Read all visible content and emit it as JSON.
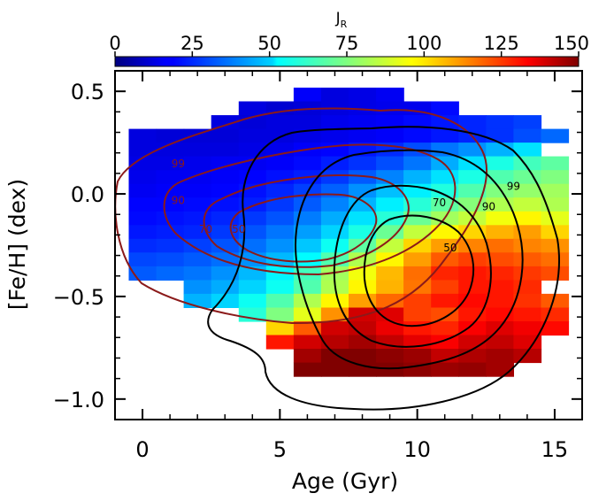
{
  "chart_data": {
    "type": "heatmap",
    "xlabel": "Age (Gyr)",
    "ylabel": "[Fe/H] (dex)",
    "xlim": [
      -1,
      16
    ],
    "ylim": [
      -1.1,
      0.6
    ],
    "x_ticks": [
      0,
      5,
      10,
      15
    ],
    "x_tick_labels": [
      "0",
      "5",
      "10",
      "15"
    ],
    "y_ticks": [
      0.5,
      0.0,
      -0.5,
      -1.0
    ],
    "y_tick_labels": [
      "0.5",
      "0.0",
      "−0.5",
      "−1.0"
    ],
    "colorbar": {
      "label": "J",
      "label_sub": "R",
      "range": [
        0,
        150
      ],
      "ticks": [
        0,
        25,
        50,
        75,
        100,
        125,
        150
      ],
      "tick_labels": [
        "0",
        "25",
        "50",
        "75",
        "100",
        "125",
        "150"
      ],
      "colormap": "jet"
    },
    "grid_x_start": -0.5,
    "grid_y_top": 0.25,
    "cell_width_gyr": 1.0,
    "cell_height_dex": 0.067,
    "rows": [
      {
        "row": -4,
        "start": 6,
        "values": [
          18,
          14,
          15,
          17
        ]
      },
      {
        "row": -3,
        "start": 4,
        "values": [
          14,
          12,
          13,
          14,
          15,
          16,
          16,
          20
        ]
      },
      {
        "row": -2,
        "start": 3,
        "values": [
          14,
          13,
          14,
          14,
          16,
          17,
          18,
          20,
          22,
          24,
          26,
          28
        ]
      },
      {
        "row": -1,
        "start": 0,
        "values": [
          14,
          13,
          13,
          13,
          14,
          14,
          15,
          16,
          17,
          18,
          20,
          22,
          24,
          26,
          30,
          34
        ]
      },
      {
        "row": 0,
        "start": 0,
        "values": [
          14,
          14,
          14,
          14,
          15,
          16,
          18,
          19,
          22,
          25,
          30,
          36,
          40,
          45,
          52
        ]
      },
      {
        "row": 1,
        "start": 0,
        "values": [
          15,
          15,
          16,
          17,
          17,
          18,
          20,
          23,
          26,
          30,
          36,
          44,
          52,
          60,
          66,
          70
        ]
      },
      {
        "row": 2,
        "start": 0,
        "values": [
          16,
          17,
          17,
          18,
          19,
          21,
          23,
          27,
          32,
          38,
          45,
          52,
          60,
          68,
          72,
          75
        ]
      },
      {
        "row": 3,
        "start": 0,
        "values": [
          17,
          18,
          18,
          19,
          21,
          24,
          28,
          33,
          40,
          47,
          54,
          61,
          68,
          75,
          78,
          80
        ]
      },
      {
        "row": 4,
        "start": 0,
        "values": [
          19,
          19,
          20,
          21,
          23,
          27,
          32,
          38,
          45,
          54,
          62,
          70,
          76,
          82,
          85,
          82
        ]
      },
      {
        "row": 5,
        "start": 0,
        "values": [
          20,
          21,
          22,
          24,
          27,
          31,
          37,
          44,
          52,
          62,
          72,
          80,
          85,
          92,
          95,
          90
        ]
      },
      {
        "row": 6,
        "start": 0,
        "values": [
          22,
          23,
          24,
          27,
          31,
          36,
          42,
          50,
          60,
          72,
          85,
          95,
          100,
          105,
          108,
          100
        ]
      },
      {
        "row": 7,
        "start": 0,
        "values": [
          25,
          26,
          28,
          31,
          35,
          40,
          48,
          58,
          70,
          85,
          100,
          108,
          112,
          115,
          112,
          110
        ]
      },
      {
        "row": 8,
        "start": 0,
        "values": [
          29,
          30,
          32,
          35,
          40,
          46,
          56,
          68,
          82,
          95,
          108,
          118,
          122,
          120,
          118,
          115
        ]
      },
      {
        "row": 9,
        "start": 0,
        "values": [
          32,
          34,
          36,
          40,
          46,
          55,
          66,
          80,
          92,
          104,
          115,
          126,
          128,
          126,
          123,
          120
        ]
      },
      {
        "row": 10,
        "start": 2,
        "values": [
          40,
          44,
          50,
          58,
          68,
          82,
          95,
          105,
          114,
          122,
          128,
          128,
          125
        ]
      },
      {
        "row": 11,
        "start": 2,
        "values": [
          45,
          50,
          58,
          68,
          82,
          95,
          108,
          116,
          122,
          128,
          130,
          128,
          124,
          118
        ]
      },
      {
        "row": 12,
        "start": 4,
        "values": [
          62,
          75,
          90,
          110,
          138,
          136,
          122,
          120,
          128,
          130,
          128,
          125
        ]
      },
      {
        "row": 13,
        "start": 5,
        "values": [
          100,
          118,
          138,
          140,
          134,
          128,
          126,
          132,
          136,
          133,
          130
        ]
      },
      {
        "row": 14,
        "start": 5,
        "values": [
          128,
          138,
          142,
          145,
          140,
          135,
          132,
          138,
          140,
          136
        ]
      },
      {
        "row": 15,
        "start": 6,
        "values": [
          145,
          150,
          150,
          148,
          146,
          140,
          143,
          145,
          142
        ]
      },
      {
        "row": 16,
        "start": 6,
        "values": [
          150,
          150,
          150,
          150,
          148,
          146,
          147,
          145
        ]
      }
    ],
    "contour_labels": [
      {
        "text": "99",
        "x": 1.3,
        "y": 0.13,
        "color": "#8b1a1a"
      },
      {
        "text": "90",
        "x": 1.3,
        "y": -0.05,
        "color": "#8b1a1a"
      },
      {
        "text": "70",
        "x": 2.3,
        "y": -0.19,
        "color": "#8b1a1a"
      },
      {
        "text": "50",
        "x": 3.5,
        "y": -0.19,
        "color": "#8b1a1a"
      },
      {
        "text": "99",
        "x": 13.5,
        "y": 0.02,
        "color": "#000000"
      },
      {
        "text": "70",
        "x": 10.8,
        "y": -0.06,
        "color": "#000000"
      },
      {
        "text": "90",
        "x": 12.6,
        "y": -0.08,
        "color": "#000000"
      },
      {
        "text": "50",
        "x": 11.2,
        "y": -0.28,
        "color": "#000000"
      }
    ]
  }
}
